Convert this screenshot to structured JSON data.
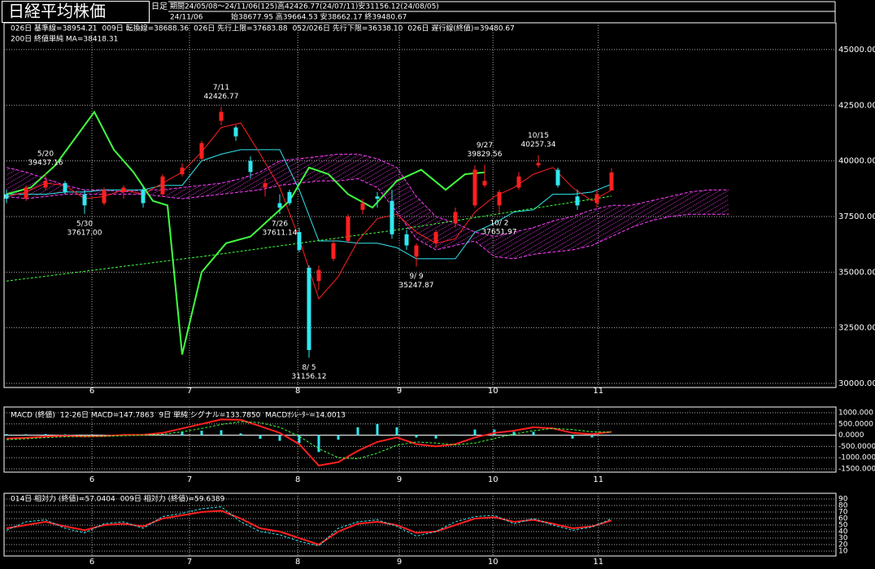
{
  "chart_data": [
    {
      "type": "candlestick",
      "title": "日経平均株価",
      "period_label": "日足",
      "info": [
        "期間24/05/08～24/11/06(125)高42426.77(24/07/11)安31156.12(24/08/05)",
        "24/11/06",
        "始38677.95 高39664.53 安38662.17 終39480.67"
      ],
      "xlim": [
        -0.5,
        170
      ],
      "ylim": [
        29818,
        46204
      ],
      "grid": true,
      "xticks": [
        {
          "value": 17.5,
          "label": "6"
        },
        {
          "value": 37.5,
          "label": "7"
        },
        {
          "value": 59.7,
          "label": "8"
        },
        {
          "value": 80.5,
          "label": "9"
        },
        {
          "value": 99.7,
          "label": "10"
        },
        {
          "value": 121.3,
          "label": "11"
        }
      ],
      "yticks": [
        {
          "value": 45000,
          "label": "45000.00"
        },
        {
          "value": 42500,
          "label": "42500.00"
        },
        {
          "value": 40000,
          "label": "40000.00"
        },
        {
          "value": 37500,
          "label": "37500.00"
        },
        {
          "value": 35000,
          "label": "35000.00"
        },
        {
          "value": 32500,
          "label": "32500.00"
        },
        {
          "value": 30000,
          "label": "30000.00"
        }
      ],
      "up_color": "#ff2020",
      "down_color": "#30e8f0",
      "candles": {
        "x": [
          0,
          4,
          8,
          12,
          16,
          20,
          24,
          28,
          32,
          36,
          40,
          44,
          47,
          50,
          53,
          56,
          58,
          60,
          62,
          64,
          67,
          70,
          73,
          76,
          79,
          82,
          84,
          88,
          92,
          96,
          98,
          101,
          105,
          109,
          113,
          117,
          121,
          124
        ],
        "open": [
          38500,
          38300,
          38800,
          39000,
          38500,
          38100,
          38600,
          38700,
          38500,
          39400,
          40100,
          41800,
          41500,
          40000,
          38800,
          38100,
          38600,
          36800,
          35200,
          34600,
          35600,
          36400,
          37800,
          38400,
          38200,
          36700,
          35700,
          36300,
          37200,
          38000,
          38900,
          38000,
          38800,
          39800,
          39600,
          38400,
          38100,
          38677.95
        ],
        "high": [
          38700,
          38900,
          39437.16,
          39100,
          38700,
          38800,
          38900,
          38900,
          39400,
          39900,
          40900,
          42426.77,
          41600,
          40200,
          39200,
          38500,
          38700,
          37000,
          35300,
          35300,
          36500,
          37600,
          38300,
          38600,
          38700,
          36900,
          36300,
          36900,
          37900,
          39800,
          39829.56,
          38700,
          39500,
          40257.34,
          39700,
          38700,
          38700,
          39664.53
        ],
        "low": [
          38100,
          38200,
          38700,
          38500,
          37617,
          38000,
          38300,
          37900,
          38400,
          39300,
          40000,
          41600,
          40900,
          39200,
          38400,
          37611.14,
          38000,
          35900,
          31156.12,
          34200,
          35500,
          36300,
          37600,
          37900,
          36500,
          36000,
          35247.87,
          36100,
          37000,
          37900,
          38800,
          37651.97,
          38700,
          39700,
          38800,
          37800,
          37900,
          38662.17
        ],
        "close": [
          38300,
          38800,
          39100,
          38600,
          38000,
          38700,
          38800,
          38100,
          39300,
          39700,
          40800,
          42200,
          41100,
          39500,
          39000,
          37900,
          38100,
          36000,
          31500,
          35100,
          36300,
          37500,
          38100,
          38300,
          36700,
          36200,
          36200,
          36800,
          37700,
          39600,
          39100,
          38600,
          39300,
          39900,
          38900,
          38000,
          38500,
          39480.67
        ]
      },
      "cloud": {
        "hatch_color": "#ff40ff",
        "x": [
          0,
          4,
          8,
          12,
          16,
          20,
          24,
          28,
          32,
          36,
          40,
          44,
          48,
          52,
          56,
          60,
          64,
          68,
          72,
          76,
          80,
          84,
          88,
          92,
          96,
          100,
          104,
          108,
          112,
          116,
          120,
          124,
          128,
          132,
          136,
          140,
          144,
          148
        ],
        "series": [
          {
            "name": "026日 先行上限=37683.88",
            "color": "#ff40ff",
            "values": [
              39700,
              39500,
              39200,
              38900,
              38700,
              38700,
              38600,
              38700,
              38700,
              38800,
              38900,
              39000,
              39200,
              39500,
              40000,
              40100,
              40200,
              40300,
              40300,
              40100,
              39700,
              38400,
              37500,
              37200,
              36800,
              36600,
              36800,
              37000,
              37300,
              37500,
              37800,
              38000,
              38000,
              38200,
              38400,
              38600,
              38700,
              38700
            ]
          },
          {
            "name": "052/026日 先行下限=36338.10",
            "color": "#ff40ff",
            "values": [
              38400,
              38300,
              38400,
              38500,
              38500,
              38500,
              38500,
              38500,
              38400,
              38300,
              38400,
              38500,
              38600,
              38700,
              38900,
              39000,
              39100,
              39100,
              39200,
              38800,
              37700,
              36500,
              36000,
              36200,
              36400,
              35700,
              35600,
              35800,
              35900,
              36000,
              36200,
              36600,
              37000,
              37300,
              37500,
              37600,
              37600,
              37600
            ]
          }
        ]
      },
      "series": [
        {
          "name": "026日 基準線=38954.21",
          "color": "#30e8f0",
          "style": "solid",
          "x": [
            0,
            4,
            8,
            12,
            16,
            20,
            24,
            28,
            32,
            36,
            40,
            44,
            48,
            52,
            56,
            60,
            64,
            68,
            72,
            76,
            80,
            84,
            88,
            92,
            96,
            100,
            104,
            108,
            112,
            116,
            120,
            124
          ],
          "values": [
            38500,
            38500,
            38500,
            38600,
            38600,
            38700,
            38700,
            38700,
            38900,
            38900,
            40000,
            40300,
            40500,
            40500,
            40500,
            38700,
            36400,
            36400,
            36300,
            36300,
            36100,
            35600,
            35600,
            35600,
            36800,
            37200,
            37700,
            37800,
            38500,
            38500,
            38600,
            38954.21
          ]
        },
        {
          "name": "009日 転換線=38688.36",
          "color": "#ff2020",
          "style": "solid",
          "x": [
            0,
            4,
            8,
            12,
            16,
            20,
            24,
            28,
            32,
            36,
            40,
            44,
            48,
            52,
            56,
            60,
            64,
            68,
            72,
            76,
            80,
            84,
            88,
            92,
            96,
            100,
            104,
            108,
            112,
            116,
            120,
            124
          ],
          "values": [
            38400,
            38600,
            39000,
            38900,
            38300,
            38400,
            38700,
            38500,
            39000,
            39500,
            40400,
            41500,
            41700,
            40300,
            38800,
            36500,
            33800,
            34800,
            36400,
            37400,
            37600,
            36800,
            36300,
            36500,
            37700,
            38400,
            38800,
            39400,
            39700,
            38800,
            38200,
            38688.36
          ]
        },
        {
          "name": "026日 遅行線(終値)=39480.67",
          "color": "#40ff40",
          "style": "bold",
          "x": [
            0,
            5,
            10,
            13,
            18,
            22,
            26,
            30,
            33,
            36,
            40,
            45,
            50,
            55,
            58,
            62,
            66,
            70,
            75,
            80,
            85,
            90,
            94,
            98
          ],
          "values": [
            38500,
            38800,
            39800,
            40700,
            42200,
            40500,
            39500,
            38200,
            38000,
            31300,
            35000,
            36300,
            36600,
            37600,
            38200,
            39700,
            39400,
            38500,
            37900,
            39100,
            39600,
            38700,
            39400,
            39480.67
          ]
        },
        {
          "name": "200日 終値単純 MA=38418.31",
          "color": "#40ff40",
          "style": "dashed",
          "x": [
            0,
            40,
            80,
            124
          ],
          "values": [
            34600,
            35700,
            36900,
            38418.31
          ]
        }
      ],
      "annotations": [
        {
          "x": 8,
          "date": "5/20",
          "value": 39437.16,
          "kind": "high"
        },
        {
          "x": 16,
          "date": "5/30",
          "value": 37617,
          "label": "37617.00",
          "kind": "low"
        },
        {
          "x": 44,
          "date": "7/11",
          "value": 42426.77,
          "kind": "high"
        },
        {
          "x": 56,
          "date": "7/26",
          "value": 37611.14,
          "kind": "low"
        },
        {
          "x": 62,
          "date": "8/ 5",
          "value": 31156.12,
          "kind": "low"
        },
        {
          "x": 84,
          "date": "9/ 9",
          "value": 35247.87,
          "kind": "low"
        },
        {
          "x": 98,
          "date": "9/27",
          "value": 39829.56,
          "kind": "high"
        },
        {
          "x": 101,
          "date": "10/ 2",
          "value": 37651.97,
          "kind": "low"
        },
        {
          "x": 109,
          "date": "10/15",
          "value": 40257.34,
          "kind": "high"
        }
      ]
    },
    {
      "type": "macd",
      "title": "MACD (終値)",
      "xlim": [
        -0.5,
        170
      ],
      "ylim": [
        -1645,
        1254
      ],
      "grid": true,
      "xticks": [
        {
          "value": 17.5,
          "label": "6"
        },
        {
          "value": 37.5,
          "label": "7"
        },
        {
          "value": 59.7,
          "label": "8"
        },
        {
          "value": 80.5,
          "label": "9"
        },
        {
          "value": 99.7,
          "label": "10"
        },
        {
          "value": 121.3,
          "label": "11"
        }
      ],
      "yticks": [
        {
          "value": 1000,
          "label": "1000.000"
        },
        {
          "value": 500,
          "label": "500.0000"
        },
        {
          "value": 0,
          "label": "0.0000"
        },
        {
          "value": -500,
          "label": "-500.0000"
        },
        {
          "value": -1000,
          "label": "-1000.000"
        },
        {
          "value": -1500,
          "label": "-1500.000"
        }
      ],
      "x": [
        0,
        4,
        8,
        12,
        16,
        20,
        24,
        28,
        32,
        36,
        40,
        44,
        48,
        52,
        56,
        60,
        64,
        68,
        72,
        76,
        80,
        84,
        88,
        92,
        96,
        100,
        104,
        108,
        112,
        116,
        120,
        124
      ],
      "series": [
        {
          "name": "12-26日 MACD=147.7863",
          "color": "#ff2020",
          "style": "bold",
          "values": [
            -150,
            -120,
            -60,
            -30,
            -60,
            -40,
            10,
            20,
            100,
            300,
            500,
            700,
            680,
            400,
            100,
            -400,
            -1350,
            -1200,
            -700,
            -300,
            -100,
            -400,
            -500,
            -400,
            -100,
            100,
            200,
            350,
            300,
            100,
            50,
            147.7863
          ]
        },
        {
          "name": "9日 単純 シグナル=133.7850",
          "color": "#40ff40",
          "style": "dashed",
          "values": [
            -200,
            -160,
            -110,
            -70,
            -55,
            -50,
            -20,
            0,
            40,
            150,
            300,
            480,
            600,
            560,
            350,
            -50,
            -600,
            -1000,
            -1050,
            -800,
            -450,
            -300,
            -350,
            -430,
            -350,
            -150,
            50,
            200,
            300,
            250,
            150,
            133.785
          ]
        }
      ],
      "histogram": {
        "name": "MACDｵｼﾚｰﾀｰ=14.0013",
        "color": "#30e8f0",
        "values": [
          50,
          40,
          50,
          40,
          -5,
          10,
          30,
          20,
          60,
          150,
          200,
          220,
          80,
          -160,
          -250,
          -350,
          -750,
          -200,
          350,
          500,
          350,
          -100,
          -150,
          30,
          250,
          250,
          150,
          150,
          0,
          -150,
          -100,
          14.0013
        ]
      }
    },
    {
      "type": "line",
      "xlim": [
        -0.5,
        170
      ],
      "ylim": [
        2.5,
        98.75
      ],
      "grid": true,
      "xticks": [
        {
          "value": 17.5,
          "label": "6"
        },
        {
          "value": 37.5,
          "label": "7"
        },
        {
          "value": 59.7,
          "label": "8"
        },
        {
          "value": 80.5,
          "label": "9"
        },
        {
          "value": 99.7,
          "label": "10"
        },
        {
          "value": 121.3,
          "label": "11"
        }
      ],
      "yticks": [
        90,
        80,
        70,
        60,
        50,
        40,
        30,
        20,
        10
      ],
      "x": [
        0,
        4,
        8,
        12,
        16,
        20,
        24,
        28,
        32,
        36,
        40,
        44,
        48,
        52,
        56,
        60,
        64,
        68,
        72,
        76,
        80,
        84,
        88,
        92,
        96,
        100,
        104,
        108,
        112,
        116,
        120,
        124
      ],
      "series": [
        {
          "name": "014日 相対力 (終値)=57.0404",
          "color": "#ff2020",
          "style": "bold",
          "values": [
            45,
            50,
            55,
            48,
            42,
            50,
            52,
            48,
            60,
            65,
            70,
            72,
            60,
            45,
            40,
            30,
            20,
            40,
            52,
            55,
            50,
            38,
            40,
            50,
            60,
            62,
            55,
            58,
            52,
            45,
            48,
            57.0404
          ]
        },
        {
          "name": "009日 相対力 (終値)=59.6389",
          "color": "#30e8f0",
          "style": "dashed",
          "values": [
            42,
            55,
            58,
            45,
            38,
            52,
            55,
            45,
            63,
            68,
            75,
            78,
            55,
            40,
            35,
            25,
            18,
            45,
            55,
            58,
            48,
            33,
            40,
            55,
            63,
            65,
            52,
            60,
            50,
            42,
            47,
            59.6389
          ]
        }
      ]
    }
  ]
}
